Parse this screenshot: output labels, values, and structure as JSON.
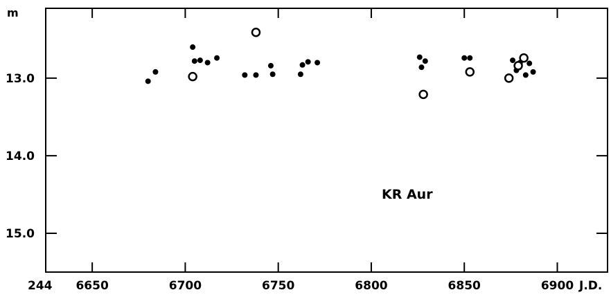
{
  "chart_data": {
    "type": "scatter",
    "title": "",
    "annotation": "KR Aur",
    "ylabel": "m",
    "xlabel": "J.D.",
    "x_prefix": "244",
    "x_ticks": [
      6650,
      6700,
      6750,
      6800,
      6850,
      6900
    ],
    "y_ticks": [
      13.0,
      14.0,
      15.0
    ],
    "y_tick_labels": [
      "13.0",
      "14.0",
      "15.0"
    ],
    "xlim": [
      6625,
      6927
    ],
    "ylim": [
      12.1,
      15.5
    ],
    "y_inverted": true,
    "grid": false,
    "series": [
      {
        "marker": "filled-dot",
        "points": [
          [
            6680,
            13.04
          ],
          [
            6684,
            12.92
          ],
          [
            6704,
            12.6
          ],
          [
            6705,
            12.78
          ],
          [
            6708,
            12.77
          ],
          [
            6712,
            12.8
          ],
          [
            6717,
            12.74
          ],
          [
            6732,
            12.96
          ],
          [
            6738,
            12.96
          ],
          [
            6746,
            12.84
          ],
          [
            6747,
            12.95
          ],
          [
            6762,
            12.95
          ],
          [
            6763,
            12.83
          ],
          [
            6766,
            12.79
          ],
          [
            6771,
            12.8
          ],
          [
            6826,
            12.73
          ],
          [
            6827,
            12.86
          ],
          [
            6829,
            12.78
          ],
          [
            6850,
            12.74
          ],
          [
            6853,
            12.74
          ],
          [
            6876,
            12.77
          ],
          [
            6878,
            12.9
          ],
          [
            6880,
            12.8
          ],
          [
            6883,
            12.96
          ],
          [
            6885,
            12.81
          ],
          [
            6887,
            12.92
          ]
        ]
      },
      {
        "marker": "open-circle",
        "points": [
          [
            6704,
            12.98
          ],
          [
            6738,
            12.41
          ],
          [
            6828,
            13.21
          ],
          [
            6853,
            12.92
          ],
          [
            6874,
            13.0
          ],
          [
            6879,
            12.84
          ],
          [
            6882,
            12.74
          ]
        ]
      }
    ]
  }
}
